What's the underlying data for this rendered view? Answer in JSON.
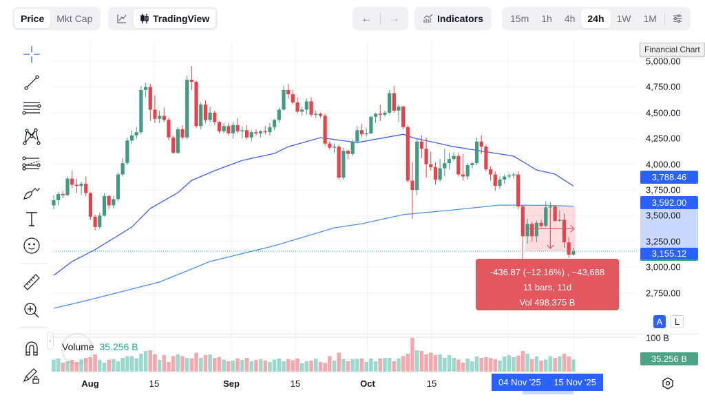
{
  "toolbar": {
    "type_tabs": [
      "Price",
      "Mkt Cap"
    ],
    "active_type": "Price",
    "chart_style_label": "TradingView",
    "indicators_label": "Indicators",
    "intervals": [
      "15m",
      "1h",
      "4h",
      "24h",
      "1W",
      "1M"
    ],
    "active_interval": "24h"
  },
  "left_tools": [
    "crosshair-icon",
    "trend-line-icon",
    "horizontal-lines-icon",
    "pattern-icon",
    "projection-icon",
    "brush-icon",
    "text-icon",
    "emoji-icon",
    "ruler-icon",
    "zoom-in-icon",
    "magnet-icon",
    "lock-drawings-icon"
  ],
  "tooltip_title": "Financial Chart",
  "price_axis": [
    "5,000.00",
    "4,750.00",
    "4,500.00",
    "4,250.00",
    "4,000.00",
    "3,750.00",
    "3,500.00",
    "3,250.00",
    "3,000.00",
    "2,750.00"
  ],
  "badges": {
    "ma_fast": "3,788.46",
    "ma_slow": "3,592.00",
    "last_price": "3,155.12"
  },
  "scale_buttons": {
    "auto": "A",
    "log": "L"
  },
  "volume": {
    "label": "Volume",
    "value": "35.256 B",
    "axis_label": "100 B",
    "badge": "35.256 B"
  },
  "time_axis": [
    "Aug",
    "15",
    "Sep",
    "15",
    "Oct",
    "15"
  ],
  "time_markers": {
    "start": "04 Nov '25",
    "end": "15 Nov '25"
  },
  "measure": {
    "line1": "-436.87 (−12.16%) , −43,688",
    "line2": "11 bars, 11d",
    "line3": "Vol 498.375 B"
  },
  "colors": {
    "up": "#22ab94",
    "up_body": "#429a82",
    "down": "#e4434b",
    "ma_fast": "#3f5ef0",
    "ma_slow": "#4a90f5",
    "accent": "#2962ff",
    "measure_bg": "#e5575f"
  },
  "chart_data": {
    "type": "candlestick",
    "year": 2025,
    "ylim": [
      2650,
      5050
    ],
    "candles_ohlc": [
      [
        "07-24",
        3600,
        3700,
        3560,
        3650
      ],
      [
        "07-25",
        3650,
        3730,
        3600,
        3710
      ],
      [
        "07-26",
        3710,
        3740,
        3670,
        3700
      ],
      [
        "07-27",
        3700,
        3880,
        3690,
        3860
      ],
      [
        "07-28",
        3860,
        3940,
        3770,
        3800
      ],
      [
        "07-29",
        3800,
        3860,
        3720,
        3790
      ],
      [
        "07-30",
        3790,
        3830,
        3700,
        3810
      ],
      [
        "07-31",
        3810,
        3880,
        3690,
        3720
      ],
      [
        "08-01",
        3720,
        3730,
        3460,
        3490
      ],
      [
        "08-02",
        3490,
        3510,
        3360,
        3390
      ],
      [
        "08-03",
        3390,
        3530,
        3370,
        3500
      ],
      [
        "08-04",
        3500,
        3720,
        3490,
        3690
      ],
      [
        "08-05",
        3690,
        3700,
        3560,
        3600
      ],
      [
        "08-06",
        3600,
        3690,
        3570,
        3660
      ],
      [
        "08-07",
        3660,
        3920,
        3640,
        3900
      ],
      [
        "08-08",
        3900,
        4060,
        3880,
        4010
      ],
      [
        "08-09",
        4010,
        4260,
        3990,
        4230
      ],
      [
        "08-10",
        4230,
        4330,
        4200,
        4280
      ],
      [
        "08-11",
        4280,
        4360,
        4250,
        4310
      ],
      [
        "08-12",
        4310,
        4760,
        4290,
        4720
      ],
      [
        "08-13",
        4720,
        4790,
        4650,
        4750
      ],
      [
        "08-14",
        4750,
        4780,
        4420,
        4530
      ],
      [
        "08-15",
        4530,
        4670,
        4400,
        4440
      ],
      [
        "08-16",
        4440,
        4520,
        4400,
        4470
      ],
      [
        "08-17",
        4470,
        4550,
        4410,
        4430
      ],
      [
        "08-18",
        4430,
        4450,
        4230,
        4260
      ],
      [
        "08-19",
        4260,
        4280,
        4100,
        4110
      ],
      [
        "08-20",
        4110,
        4360,
        4100,
        4340
      ],
      [
        "08-21",
        4340,
        4380,
        4240,
        4260
      ],
      [
        "08-22",
        4260,
        4860,
        4240,
        4820
      ],
      [
        "08-23",
        4820,
        4950,
        4720,
        4800
      ],
      [
        "08-24",
        4800,
        4810,
        4350,
        4370
      ],
      [
        "08-25",
        4370,
        4600,
        4340,
        4580
      ],
      [
        "08-26",
        4580,
        4620,
        4400,
        4430
      ],
      [
        "08-27",
        4430,
        4560,
        4410,
        4500
      ],
      [
        "08-28",
        4500,
        4520,
        4380,
        4410
      ],
      [
        "08-29",
        4410,
        4420,
        4300,
        4320
      ],
      [
        "08-30",
        4320,
        4400,
        4300,
        4370
      ],
      [
        "08-31",
        4370,
        4400,
        4280,
        4300
      ],
      [
        "09-01",
        4300,
        4410,
        4250,
        4380
      ],
      [
        "09-02",
        4380,
        4450,
        4300,
        4320
      ],
      [
        "09-03",
        4320,
        4370,
        4250,
        4330
      ],
      [
        "09-04",
        4330,
        4380,
        4240,
        4260
      ],
      [
        "09-05",
        4260,
        4330,
        4220,
        4310
      ],
      [
        "09-06",
        4310,
        4340,
        4280,
        4300
      ],
      [
        "09-07",
        4300,
        4330,
        4260,
        4320
      ],
      [
        "09-08",
        4320,
        4370,
        4290,
        4310
      ],
      [
        "09-09",
        4310,
        4400,
        4280,
        4360
      ],
      [
        "09-10",
        4360,
        4440,
        4330,
        4430
      ],
      [
        "09-11",
        4430,
        4550,
        4400,
        4530
      ],
      [
        "09-12",
        4530,
        4760,
        4520,
        4720
      ],
      [
        "09-13",
        4720,
        4780,
        4640,
        4680
      ],
      [
        "09-14",
        4680,
        4720,
        4580,
        4600
      ],
      [
        "09-15",
        4600,
        4650,
        4490,
        4510
      ],
      [
        "09-16",
        4510,
        4560,
        4470,
        4530
      ],
      [
        "09-17",
        4530,
        4640,
        4480,
        4610
      ],
      [
        "09-18",
        4610,
        4650,
        4460,
        4480
      ],
      [
        "09-19",
        4480,
        4520,
        4450,
        4490
      ],
      [
        "09-20",
        4490,
        4500,
        4450,
        4470
      ],
      [
        "09-21",
        4470,
        4490,
        4180,
        4200
      ],
      [
        "09-22",
        4200,
        4220,
        4140,
        4160
      ],
      [
        "09-23",
        4160,
        4200,
        4110,
        4170
      ],
      [
        "09-24",
        4170,
        4190,
        3850,
        3870
      ],
      [
        "09-25",
        3870,
        4160,
        3850,
        4130
      ],
      [
        "09-26",
        4130,
        4140,
        4050,
        4100
      ],
      [
        "09-27",
        4100,
        4240,
        4080,
        4220
      ],
      [
        "09-28",
        4220,
        4370,
        4200,
        4330
      ],
      [
        "09-29",
        4330,
        4390,
        4260,
        4290
      ],
      [
        "09-30",
        4290,
        4350,
        4270,
        4300
      ],
      [
        "10-01",
        4300,
        4470,
        4290,
        4460
      ],
      [
        "10-02",
        4460,
        4500,
        4400,
        4490
      ],
      [
        "10-03",
        4490,
        4580,
        4420,
        4480
      ],
      [
        "10-04",
        4480,
        4520,
        4460,
        4500
      ],
      [
        "10-05",
        4500,
        4720,
        4490,
        4690
      ],
      [
        "10-06",
        4690,
        4760,
        4500,
        4520
      ],
      [
        "10-07",
        4520,
        4580,
        4410,
        4560
      ],
      [
        "10-08",
        4560,
        4570,
        4340,
        4360
      ],
      [
        "10-09",
        4360,
        4380,
        3820,
        3840
      ],
      [
        "10-10",
        3840,
        4020,
        3470,
        3750
      ],
      [
        "10-11",
        3750,
        4250,
        3700,
        4220
      ],
      [
        "10-12",
        4220,
        4280,
        4060,
        4150
      ],
      [
        "10-13",
        4150,
        4260,
        3870,
        4000
      ],
      [
        "10-14",
        4000,
        4120,
        3940,
        3970
      ],
      [
        "10-15",
        3970,
        4020,
        3800,
        3850
      ],
      [
        "10-16",
        3850,
        4050,
        3830,
        3960
      ],
      [
        "10-17",
        3960,
        4150,
        3880,
        4010
      ],
      [
        "10-18",
        4010,
        4110,
        3950,
        4050
      ],
      [
        "10-19",
        4050,
        4120,
        4030,
        4080
      ],
      [
        "10-20",
        4080,
        4110,
        3880,
        3900
      ],
      [
        "10-21",
        3900,
        4100,
        3840,
        3880
      ],
      [
        "10-22",
        3880,
        4010,
        3850,
        3990
      ],
      [
        "10-23",
        3990,
        4020,
        3960,
        4010
      ],
      [
        "10-24",
        4010,
        4260,
        3990,
        4220
      ],
      [
        "10-25",
        4220,
        4280,
        4100,
        4170
      ],
      [
        "10-26",
        4170,
        4190,
        3930,
        3950
      ],
      [
        "10-27",
        3950,
        3980,
        3840,
        3900
      ],
      [
        "10-28",
        3900,
        3930,
        3740,
        3790
      ],
      [
        "10-29",
        3790,
        3880,
        3760,
        3850
      ],
      [
        "10-30",
        3850,
        3900,
        3810,
        3880
      ],
      [
        "10-31",
        3880,
        3910,
        3860,
        3890
      ],
      [
        "11-01",
        3890,
        3920,
        3860,
        3900
      ],
      [
        "11-02",
        3900,
        3930,
        3560,
        3590
      ],
      [
        "11-03",
        3590,
        3600,
        3060,
        3300
      ],
      [
        "11-04",
        3300,
        3470,
        3230,
        3420
      ],
      [
        "11-05",
        3420,
        3440,
        3250,
        3300
      ],
      [
        "11-06",
        3300,
        3450,
        3240,
        3430
      ],
      [
        "11-07",
        3430,
        3460,
        3380,
        3400
      ],
      [
        "11-08",
        3400,
        3640,
        3390,
        3580
      ],
      [
        "11-09",
        3580,
        3630,
        3500,
        3590
      ],
      [
        "11-10",
        3590,
        3600,
        3440,
        3450
      ],
      [
        "11-11",
        3450,
        3550,
        3440,
        3460
      ],
      [
        "11-12",
        3460,
        3520,
        3190,
        3240
      ],
      [
        "11-13",
        3240,
        3290,
        3090,
        3120
      ],
      [
        "11-14",
        3120,
        3190,
        3110,
        3155.12
      ]
    ],
    "volume_billions": [
      35,
      38,
      26,
      30,
      34,
      28,
      36,
      40,
      42,
      50,
      34,
      26,
      34,
      36,
      30,
      40,
      45,
      45,
      38,
      52,
      60,
      62,
      50,
      34,
      48,
      28,
      45,
      50,
      45,
      40,
      38,
      55,
      40,
      48,
      50,
      40,
      42,
      35,
      30,
      32,
      38,
      34,
      40,
      30,
      34,
      36,
      32,
      28,
      35,
      38,
      30,
      36,
      33,
      38,
      24,
      30,
      32,
      38,
      28,
      25,
      45,
      32,
      55,
      36,
      30,
      36,
      37,
      38,
      28,
      38,
      30,
      38,
      40,
      40,
      30,
      38,
      45,
      52,
      98,
      62,
      60,
      50,
      55,
      48,
      50,
      40,
      48,
      40,
      35,
      26,
      38,
      30,
      44,
      40,
      42,
      40,
      36,
      32,
      44,
      48,
      42,
      46,
      60,
      52,
      36,
      44,
      32,
      35,
      45,
      40,
      44,
      52,
      44,
      35.256
    ],
    "volume_ylim": [
      0,
      100
    ],
    "ma_fast": [
      [
        "07-24",
        2920
      ],
      [
        "07-28",
        3055
      ],
      [
        "08-02",
        3170
      ],
      [
        "08-10",
        3390
      ],
      [
        "08-14",
        3570
      ],
      [
        "08-20",
        3723
      ],
      [
        "08-23",
        3843
      ],
      [
        "08-28",
        3937
      ],
      [
        "09-03",
        4037
      ],
      [
        "09-10",
        4104
      ],
      [
        "09-13",
        4170
      ],
      [
        "09-20",
        4258
      ],
      [
        "09-28",
        4210
      ],
      [
        "10-08",
        4290
      ],
      [
        "10-10",
        4258
      ],
      [
        "10-19",
        4170
      ],
      [
        "11-01",
        4078
      ],
      [
        "11-06",
        3944
      ],
      [
        "11-10",
        3904
      ],
      [
        "11-14",
        3788.46
      ]
    ],
    "ma_slow": [
      [
        "07-24",
        2600
      ],
      [
        "07-31",
        2674
      ],
      [
        "08-16",
        2855
      ],
      [
        "08-27",
        3055
      ],
      [
        "09-10",
        3208
      ],
      [
        "09-23",
        3382
      ],
      [
        "09-29",
        3422
      ],
      [
        "10-08",
        3510
      ],
      [
        "10-19",
        3556
      ],
      [
        "10-29",
        3603
      ],
      [
        "11-08",
        3600
      ],
      [
        "11-14",
        3592
      ]
    ],
    "measure_range": {
      "from": "11-04",
      "to": "11-14",
      "high": 3592,
      "low": 3155.12
    }
  }
}
